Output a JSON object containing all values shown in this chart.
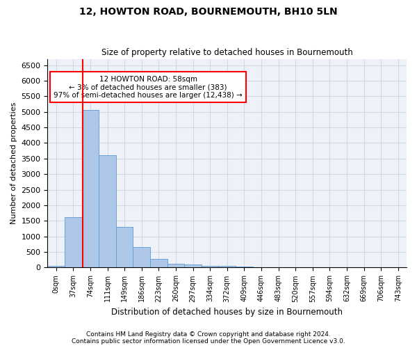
{
  "title": "12, HOWTON ROAD, BOURNEMOUTH, BH10 5LN",
  "subtitle": "Size of property relative to detached houses in Bournemouth",
  "xlabel": "Distribution of detached houses by size in Bournemouth",
  "ylabel": "Number of detached properties",
  "bar_labels": [
    "0sqm",
    "37sqm",
    "74sqm",
    "111sqm",
    "149sqm",
    "186sqm",
    "223sqm",
    "260sqm",
    "297sqm",
    "334sqm",
    "372sqm",
    "409sqm",
    "446sqm",
    "483sqm",
    "520sqm",
    "557sqm",
    "594sqm",
    "632sqm",
    "669sqm",
    "706sqm",
    "743sqm"
  ],
  "bar_values": [
    50,
    1620,
    5050,
    3600,
    1300,
    650,
    280,
    130,
    100,
    50,
    50,
    30,
    10,
    5,
    2,
    1,
    0,
    0,
    0,
    0,
    0
  ],
  "bar_color": "#aec6e8",
  "bar_edge_color": "#5b9bd5",
  "grid_color": "#d0d8e8",
  "background_color": "#eef2f8",
  "annotation_line1": "12 HOWTON ROAD: 58sqm",
  "annotation_line2": "← 3% of detached houses are smaller (383)",
  "annotation_line3": "97% of semi-detached houses are larger (12,438) →",
  "ylim": [
    0,
    6700
  ],
  "yticks": [
    0,
    500,
    1000,
    1500,
    2000,
    2500,
    3000,
    3500,
    4000,
    4500,
    5000,
    5500,
    6000,
    6500
  ],
  "footer1": "Contains HM Land Registry data © Crown copyright and database right 2024.",
  "footer2": "Contains public sector information licensed under the Open Government Licence v3.0."
}
